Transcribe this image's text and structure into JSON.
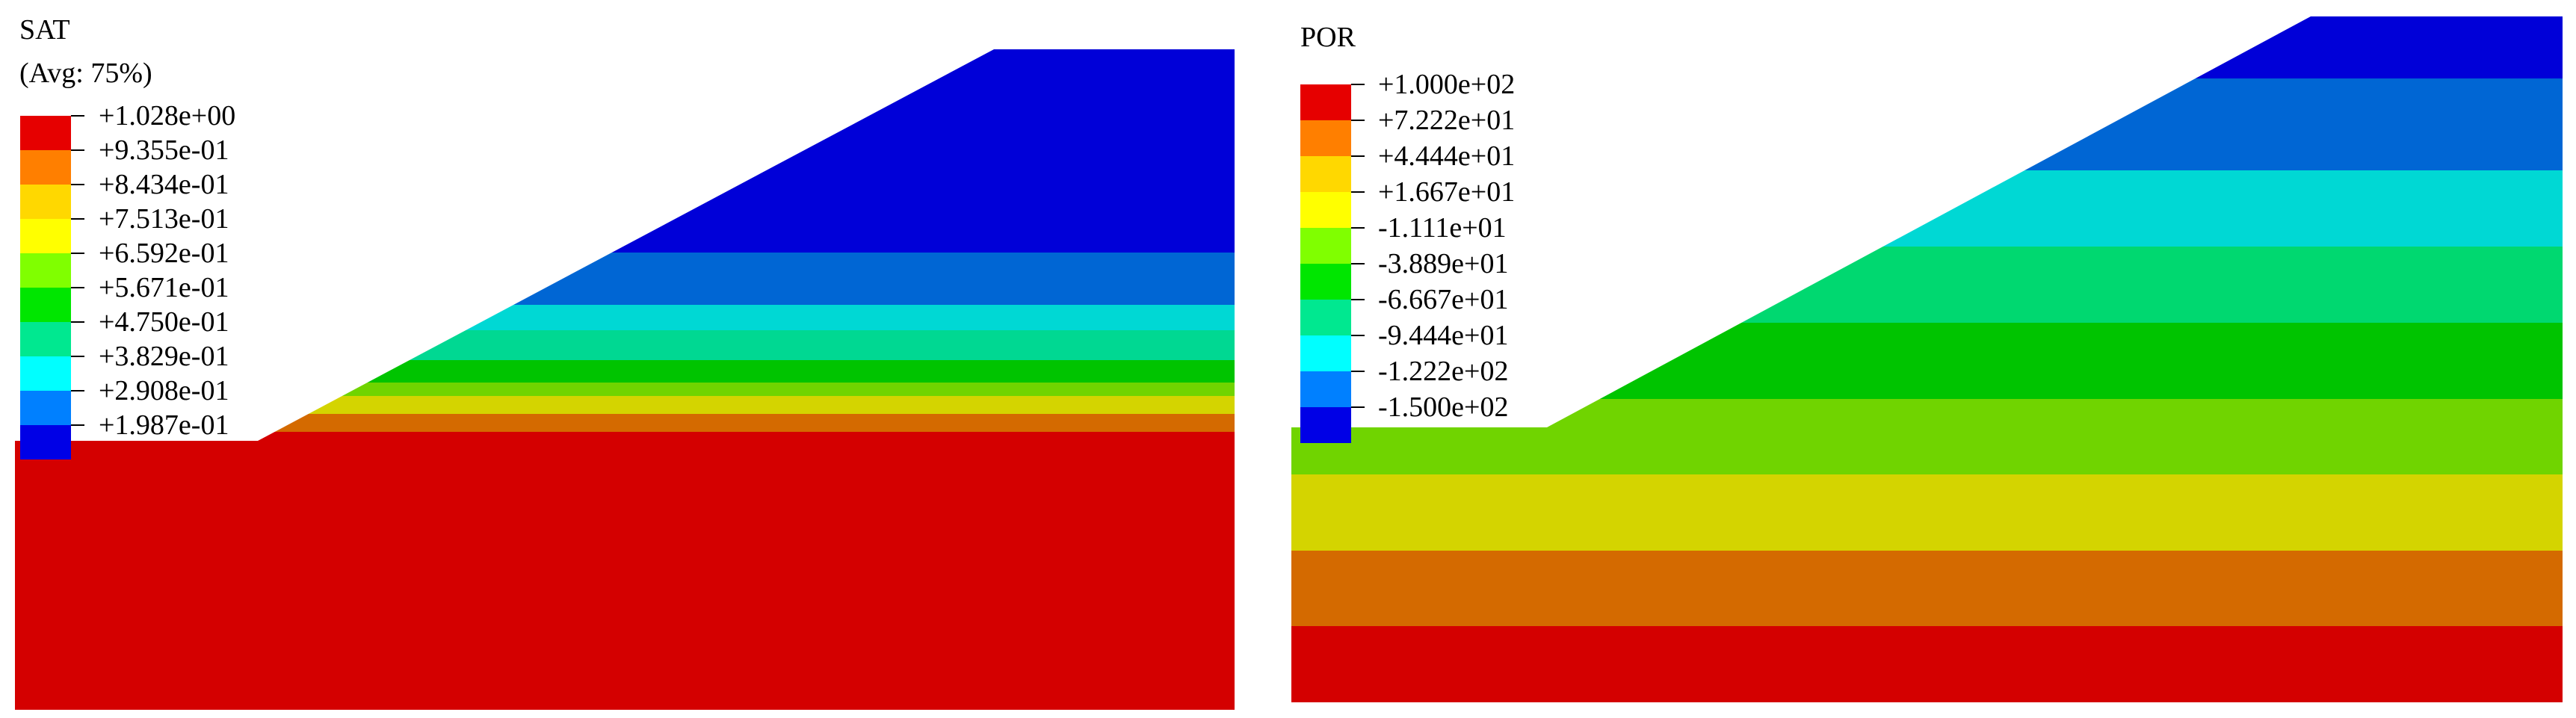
{
  "panels": [
    {
      "id": "sat",
      "title": "SAT",
      "subtitle": "(Avg: 75%)",
      "legend": {
        "labels": [
          "+1.028e+00",
          "+9.355e-01",
          "+8.434e-01",
          "+7.513e-01",
          "+6.592e-01",
          "+5.671e-01",
          "+4.750e-01",
          "+3.829e-01",
          "+2.908e-01",
          "+1.987e-01"
        ],
        "colors": [
          "#e60000",
          "#ff7f00",
          "#ffd800",
          "#ffff00",
          "#80ff00",
          "#00e600",
          "#00e890",
          "#00ffff",
          "#0080ff",
          "#0000e6"
        ]
      },
      "contour_band_colors": [
        "#0000d8",
        "#0066d4",
        "#00d8d4",
        "#00d892",
        "#00c400",
        "#70d400",
        "#d4d400",
        "#d46a00",
        "#d40000"
      ]
    },
    {
      "id": "por",
      "title": "POR",
      "legend": {
        "labels": [
          "+1.000e+02",
          "+7.222e+01",
          "+4.444e+01",
          "+1.667e+01",
          "-1.111e+01",
          "-3.889e+01",
          "-6.667e+01",
          "-9.444e+01",
          "-1.222e+02",
          "-1.500e+02"
        ],
        "colors": [
          "#e60000",
          "#ff7f00",
          "#ffd800",
          "#ffff00",
          "#80ff00",
          "#00e600",
          "#00e890",
          "#00ffff",
          "#0080ff",
          "#0000e6"
        ]
      },
      "contour_band_colors": [
        "#0000d8",
        "#0066d4",
        "#00d8d4",
        "#00d870",
        "#00c400",
        "#70d400",
        "#d4d400",
        "#d46a00",
        "#d40000"
      ]
    }
  ]
}
